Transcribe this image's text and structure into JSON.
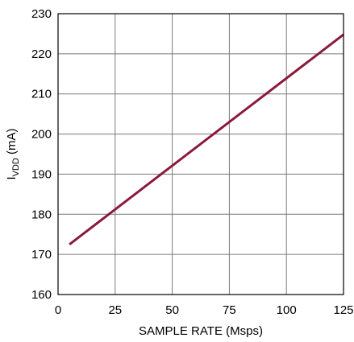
{
  "chart_data": {
    "type": "line",
    "title": "",
    "xlabel": "SAMPLE RATE (Msps)",
    "ylabel": {
      "main": "I",
      "subscript": "VDD",
      "unit": " (mA)"
    },
    "xlim": [
      0,
      125
    ],
    "ylim": [
      160,
      230
    ],
    "xticks": [
      0,
      25,
      50,
      75,
      100,
      125
    ],
    "yticks": [
      160,
      170,
      180,
      190,
      200,
      210,
      220,
      230
    ],
    "grid": true,
    "series": [
      {
        "color": "#8B1A3A",
        "x": [
          5,
          125
        ],
        "y": [
          172.5,
          224.8
        ]
      }
    ]
  }
}
